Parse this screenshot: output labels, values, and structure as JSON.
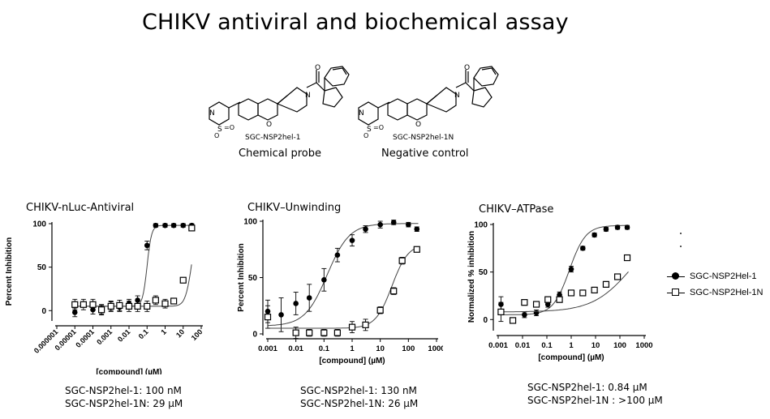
{
  "title": "CHIKV antiviral and biochemical assay",
  "molecules": [
    {
      "name": "SGC-NSP2hel-1",
      "role": "Chemical probe"
    },
    {
      "name": "SGC-NSP2hel-1N",
      "role": "Negative control"
    }
  ],
  "legend": [
    {
      "name": "SGC-NSP2Hel-1",
      "marker": "filled-circle"
    },
    {
      "name": "SGC-NSP2Hel-1N",
      "marker": "open-square"
    }
  ],
  "chart_data": [
    {
      "type": "scatter",
      "title": "CHIKV-nLuc-Antiviral",
      "xlabel": "[compound] (µM)",
      "ylabel": "Percent Inhibition",
      "xscale": "log",
      "xlim": [
        1e-06,
        100
      ],
      "ylim": [
        -10,
        100
      ],
      "xticks": [
        1e-06,
        1e-05,
        0.0001,
        0.001,
        0.01,
        0.1,
        1,
        10,
        100
      ],
      "xticklabels": [
        "0.000001",
        "0.00001",
        "0.0001",
        "0.001",
        "0.01",
        "0.1",
        "1",
        "10",
        "100"
      ],
      "xtick_rotation": -45,
      "yticks": [
        0,
        50,
        100
      ],
      "yticklabels": [
        "0",
        "50",
        "100"
      ],
      "ic50_text": [
        "SGC-NSP2hel-1: 100 nM",
        "SGC-NSP2hel-1N: 29 µM"
      ],
      "series": [
        {
          "name": "SGC-NSP2Hel-1",
          "marker": "filled-circle",
          "x": [
            1e-05,
            0.0001,
            0.0003,
            0.001,
            0.003,
            0.01,
            0.03,
            0.1,
            0.3,
            1,
            3,
            10,
            30
          ],
          "y": [
            -2,
            1,
            1,
            5,
            4,
            8,
            12,
            75,
            98,
            98,
            98,
            98,
            98
          ],
          "err": [
            5,
            5,
            5,
            5,
            5,
            5,
            5,
            5,
            2,
            2,
            2,
            2,
            2
          ],
          "fit": {
            "bottom": 5,
            "top": 98,
            "ic50": 0.1,
            "hill": 3.5
          }
        },
        {
          "name": "SGC-NSP2Hel-1N",
          "marker": "open-square",
          "x": [
            1e-05,
            3e-05,
            0.0001,
            0.0003,
            0.001,
            0.003,
            0.01,
            0.03,
            0.1,
            0.3,
            1,
            3,
            10,
            30
          ],
          "y": [
            7,
            7,
            7,
            1,
            5,
            6,
            5,
            5,
            5,
            12,
            8,
            11,
            35,
            95
          ],
          "err": [
            6,
            6,
            6,
            6,
            6,
            6,
            6,
            6,
            6,
            5,
            5,
            3,
            3,
            3
          ],
          "fit": {
            "bottom": 5,
            "top": 100,
            "ic50": 29,
            "hill": 2.5
          }
        }
      ]
    },
    {
      "type": "scatter",
      "title": "CHIKV–Unwinding",
      "xlabel": "[compound] (µM)",
      "ylabel": "Percent Inhibition",
      "xscale": "log",
      "xlim": [
        0.001,
        1000
      ],
      "ylim": [
        0,
        100
      ],
      "xticks": [
        0.001,
        0.01,
        0.1,
        1,
        10,
        100,
        1000
      ],
      "xticklabels": [
        "0.001",
        "0.01",
        "0.1",
        "1",
        "10",
        "100",
        "1000"
      ],
      "xtick_rotation": 0,
      "yticks": [
        0,
        50,
        100
      ],
      "yticklabels": [
        "0",
        "50",
        "100"
      ],
      "ic50_text": [
        "SGC-NSP2hel-1: 130 nM",
        "SGC-NSP2hel-1N: 26 µM"
      ],
      "series": [
        {
          "name": "SGC-NSP2Hel-1",
          "marker": "filled-circle",
          "x": [
            0.001,
            0.003,
            0.01,
            0.03,
            0.1,
            0.3,
            1,
            3,
            10,
            30,
            100,
            200
          ],
          "y": [
            20,
            17,
            27,
            32,
            48,
            70,
            83,
            93,
            97,
            99,
            97,
            93
          ],
          "err": [
            10,
            15,
            10,
            12,
            10,
            6,
            5,
            3,
            3,
            2,
            2,
            2
          ],
          "fit": {
            "bottom": 7,
            "top": 98,
            "ic50": 0.13,
            "hill": 1.1
          }
        },
        {
          "name": "SGC-NSP2Hel-1N",
          "marker": "open-square",
          "x": [
            0.001,
            0.01,
            0.03,
            0.1,
            0.3,
            1,
            3,
            10,
            30,
            60,
            200
          ],
          "y": [
            15,
            1,
            1,
            1,
            1,
            6,
            8,
            21,
            38,
            65,
            75
          ],
          "err": [
            10,
            5,
            3,
            3,
            3,
            5,
            5,
            3,
            3,
            3,
            2
          ],
          "fit": {
            "bottom": 5,
            "top": 80,
            "ic50": 26,
            "hill": 1.5
          }
        }
      ]
    },
    {
      "type": "scatter",
      "title": "CHIKV–ATPase",
      "xlabel": "[compound] (µM)",
      "ylabel": "Normalized % inhibition",
      "xscale": "log",
      "xlim": [
        0.001,
        1000
      ],
      "ylim": [
        -10,
        100
      ],
      "xticks": [
        0.001,
        0.01,
        0.1,
        1,
        10,
        100,
        1000
      ],
      "xticklabels": [
        "0.001",
        "0.01",
        "0.1",
        "1",
        "10",
        "100",
        "1000"
      ],
      "xtick_rotation": 0,
      "yticks": [
        0,
        50,
        100
      ],
      "yticklabels": [
        "0",
        "50",
        "100"
      ],
      "ic50_text": [
        "SGC-NSP2hel-1: 0.84 µM",
        "SGC-NSP2hel-1N : >100 µM"
      ],
      "series": [
        {
          "name": "SGC-NSP2Hel-1",
          "marker": "filled-circle",
          "x": [
            0.0013,
            0.004,
            0.012,
            0.037,
            0.11,
            0.33,
            1,
            3,
            9,
            27,
            80,
            200
          ],
          "y": [
            16,
            -1,
            5,
            7,
            16,
            26,
            53,
            75,
            89,
            95,
            97,
            97
          ],
          "err": [
            8,
            3,
            3,
            3,
            3,
            3,
            3,
            2,
            2,
            2,
            2,
            2
          ],
          "fit": {
            "bottom": 5,
            "top": 99,
            "ic50": 0.84,
            "hill": 1.3
          }
        },
        {
          "name": "SGC-NSP2Hel-1N",
          "marker": "open-square",
          "x": [
            0.0013,
            0.004,
            0.012,
            0.037,
            0.11,
            0.33,
            1,
            3,
            9,
            27,
            80,
            200
          ],
          "y": [
            8,
            -1,
            18,
            16,
            21,
            21,
            28,
            28,
            31,
            37,
            45,
            65
          ],
          "err": [
            10,
            3,
            3,
            3,
            3,
            3,
            3,
            3,
            3,
            3,
            3,
            3
          ],
          "fit": {
            "bottom": 8,
            "top": 100,
            "ic50": 300,
            "hill": 0.55
          }
        }
      ]
    }
  ]
}
